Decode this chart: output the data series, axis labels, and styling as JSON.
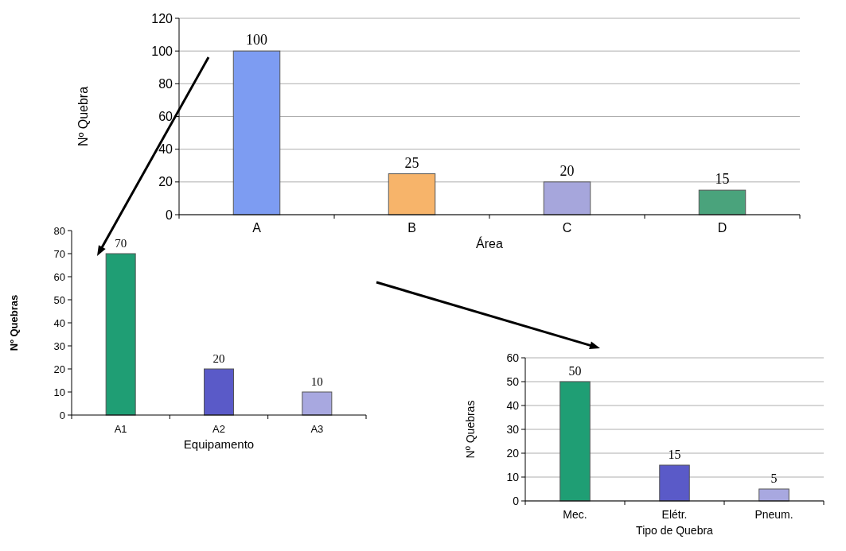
{
  "chart_data": [
    {
      "type": "bar",
      "xlabel": "Área",
      "ylabel": "Nº Quebra",
      "categories": [
        "A",
        "B",
        "C",
        "D"
      ],
      "values": [
        100,
        25,
        20,
        15
      ],
      "colors": [
        "#7d9cf2",
        "#f7b46a",
        "#a6a6dc",
        "#4aa37c"
      ],
      "ylim": [
        0,
        120
      ],
      "yticks": [
        0,
        20,
        40,
        60,
        80,
        100,
        120
      ],
      "grid": "y",
      "data_labels": true
    },
    {
      "type": "bar",
      "xlabel": "Equipamento",
      "ylabel": "Nº Quebras",
      "categories": [
        "A1",
        "A2",
        "A3"
      ],
      "values": [
        70,
        20,
        10
      ],
      "colors": [
        "#1f9e74",
        "#5a5ac8",
        "#a8a8e0"
      ],
      "ylim": [
        0,
        80
      ],
      "yticks": [
        0,
        10,
        20,
        30,
        40,
        50,
        60,
        70,
        80
      ],
      "grid": false,
      "data_labels": true
    },
    {
      "type": "bar",
      "xlabel": "Tipo de Quebra",
      "ylabel": "Nº Quebras",
      "categories": [
        "Mec.",
        "Elétr.",
        "Pneum."
      ],
      "values": [
        50,
        15,
        5
      ],
      "colors": [
        "#1f9e74",
        "#5a5ac8",
        "#a8a8e0"
      ],
      "ylim": [
        0,
        60
      ],
      "yticks": [
        0,
        10,
        20,
        30,
        40,
        50,
        60
      ],
      "grid": "y",
      "data_labels": true
    }
  ]
}
